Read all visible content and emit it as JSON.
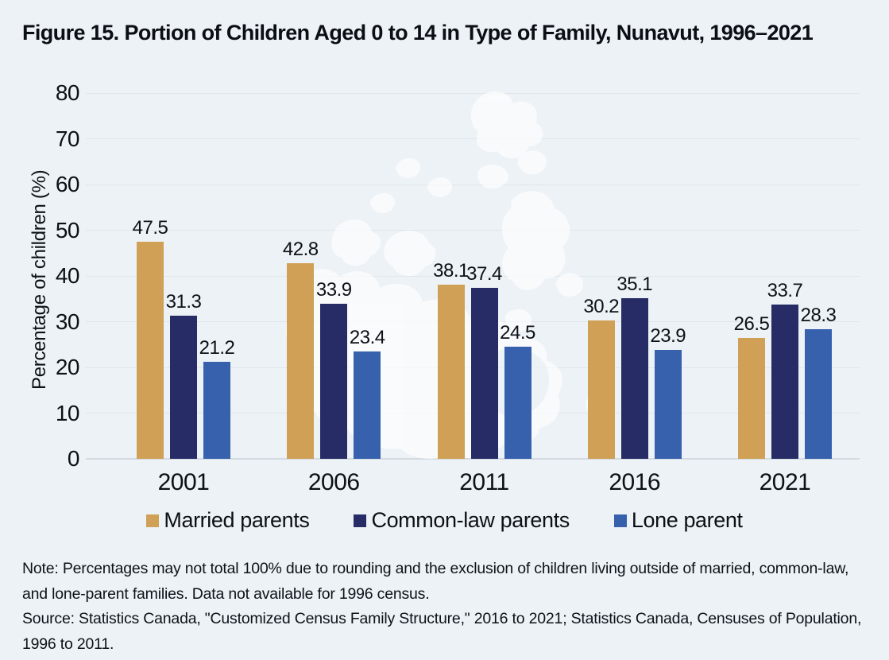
{
  "title": "Figure 15. Portion of Children Aged 0 to 14 in Type of Family, Nunavut, 1996–2021",
  "chart_data": {
    "type": "bar",
    "categories": [
      "2001",
      "2006",
      "2011",
      "2016",
      "2021"
    ],
    "series": [
      {
        "name": "Married parents",
        "color": "#CFA055",
        "values": [
          47.5,
          42.8,
          38.1,
          30.2,
          26.5
        ]
      },
      {
        "name": "Common-law parents",
        "color": "#272C66",
        "values": [
          31.3,
          33.9,
          37.4,
          35.1,
          33.7
        ]
      },
      {
        "name": "Lone parent",
        "color": "#3760AD",
        "values": [
          21.2,
          23.4,
          24.5,
          23.9,
          28.3
        ]
      }
    ],
    "title": "Figure 15. Portion of Children Aged 0 to 14 in Type of Family, Nunavut, 1996–2021",
    "xlabel": "",
    "ylabel": "Percentage of children (%)",
    "ylim": [
      0,
      80
    ],
    "yticks": [
      0,
      10,
      20,
      30,
      40,
      50,
      60,
      70,
      80
    ],
    "grid": true,
    "value_labels": true,
    "legend_position": "bottom",
    "background_watermark": "map-of-canada"
  },
  "note": "Note: Percentages may not total 100% due to rounding and the exclusion of children living outside of married, common-law, and lone-parent families. Data not available for 1996 census.",
  "source": "Source: Statistics Canada, \"Customized Census Family Structure,\" 2016 to 2021; Statistics Canada, Censuses of Population, 1996 to 2011.",
  "colors": {
    "background": "#EDF2F6",
    "gridline": "#E0E6EB",
    "baseline": "#D3DAE1",
    "text": "#0D1117",
    "map_watermark": "#FFFFFF",
    "married": "#CFA055",
    "common_law": "#272C66",
    "lone_parent": "#3760AD"
  }
}
